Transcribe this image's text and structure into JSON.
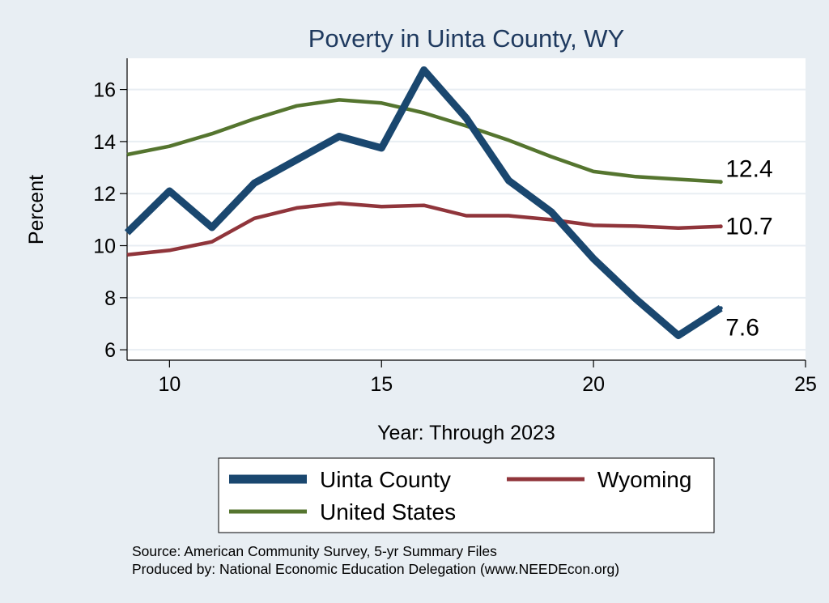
{
  "chart_data": {
    "type": "line",
    "title": "Poverty in Uinta County, WY",
    "xlabel": "Year: Through 2023",
    "ylabel": "Percent",
    "xlim": [
      9,
      25
    ],
    "ylim": [
      5.6,
      17.2
    ],
    "x_ticks": [
      10,
      15,
      20,
      25
    ],
    "y_ticks": [
      6,
      8,
      10,
      12,
      14,
      16
    ],
    "grid": true,
    "legend_position": "bottom",
    "x": [
      9,
      10,
      11,
      12,
      13,
      14,
      15,
      16,
      17,
      18,
      19,
      20,
      21,
      22,
      23
    ],
    "series": [
      {
        "name": "Uinta County",
        "color": "#1a476f",
        "values": [
          10.5,
          12.1,
          10.7,
          12.4,
          13.3,
          14.2,
          13.75,
          16.75,
          14.9,
          12.5,
          11.3,
          9.5,
          7.95,
          6.55,
          7.6
        ],
        "end_label": "7.6"
      },
      {
        "name": "Wyoming",
        "color": "#90353b",
        "values": [
          9.65,
          9.82,
          10.15,
          11.05,
          11.45,
          11.63,
          11.5,
          11.55,
          11.15,
          11.15,
          11.0,
          10.78,
          10.75,
          10.68,
          10.74
        ],
        "end_label": "10.7"
      },
      {
        "name": "United States",
        "color": "#55752f",
        "values": [
          13.5,
          13.82,
          14.3,
          14.87,
          15.37,
          15.6,
          15.48,
          15.1,
          14.6,
          14.05,
          13.42,
          12.85,
          12.65,
          12.55,
          12.45
        ],
        "end_label": "12.4"
      }
    ]
  },
  "legend": {
    "items": [
      "Uinta County",
      "Wyoming",
      "United States"
    ]
  },
  "footer": {
    "source": "Source: American Community Survey, 5-yr Summary Files",
    "produced_by": "Produced by: National Economic Education Delegation (www.NEEDEcon.org)"
  }
}
